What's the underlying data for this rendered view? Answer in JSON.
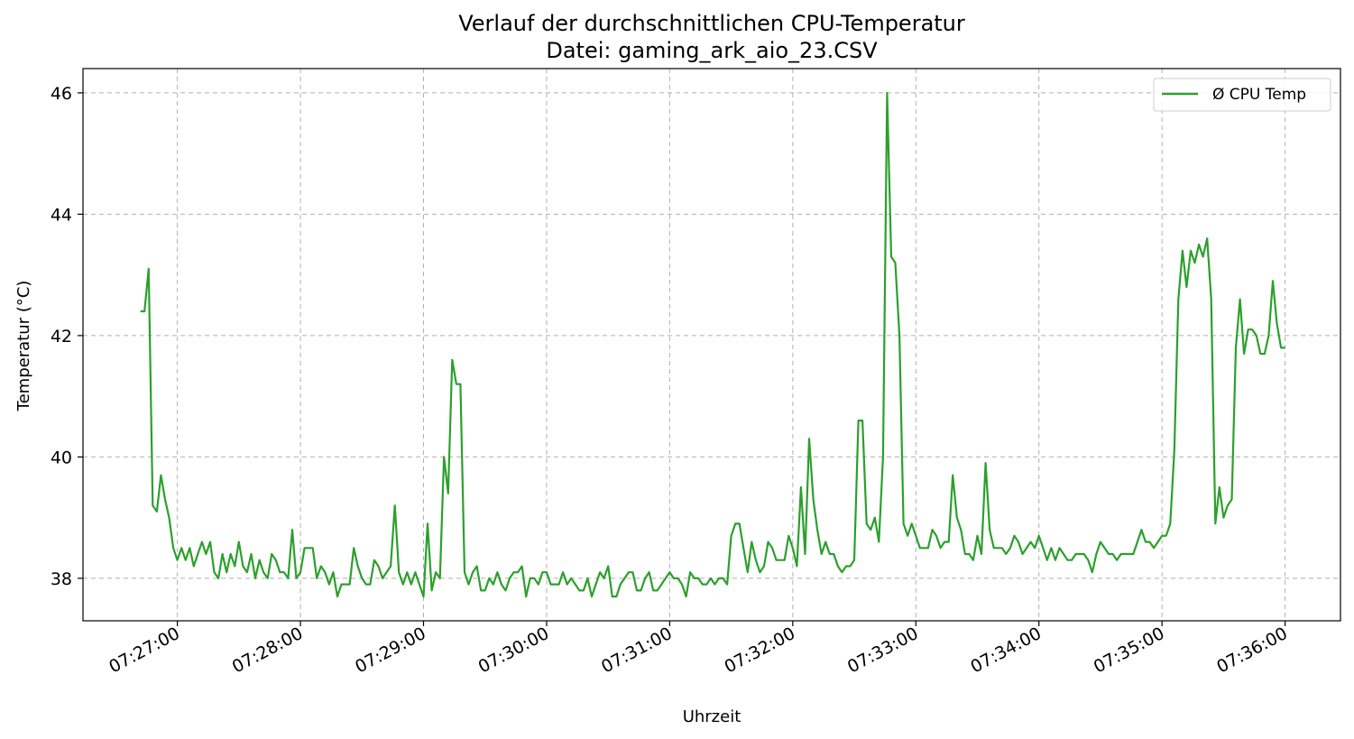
{
  "chart_data": {
    "type": "line",
    "title": "Verlauf der durchschnittlichen CPU-Temperatur",
    "subtitle": "Datei: gaming_ark_aio_23.CSV",
    "xlabel": "Uhrzeit",
    "ylabel": "Temperatur (°C)",
    "x_ticks": [
      "07:27:00",
      "07:28:00",
      "07:29:00",
      "07:30:00",
      "07:31:00",
      "07:32:00",
      "07:33:00",
      "07:34:00",
      "07:35:00",
      "07:36:00"
    ],
    "y_ticks": [
      38,
      40,
      42,
      44,
      46
    ],
    "xlim": [
      "07:26:14",
      "07:36:27"
    ],
    "ylim": [
      37.3,
      46.4
    ],
    "grid": true,
    "legend_position": "top-right",
    "series": [
      {
        "name": "Ø CPU Temp",
        "color": "#2ca02c",
        "x": [
          "07:26:42",
          "07:26:44",
          "07:26:46",
          "07:26:48",
          "07:26:50",
          "07:26:52",
          "07:26:54",
          "07:26:56",
          "07:26:58",
          "07:27:00",
          "07:27:02",
          "07:27:04",
          "07:27:06",
          "07:27:08",
          "07:27:10",
          "07:27:12",
          "07:27:14",
          "07:27:16",
          "07:27:18",
          "07:27:20",
          "07:27:22",
          "07:27:24",
          "07:27:26",
          "07:27:28",
          "07:27:30",
          "07:27:32",
          "07:27:34",
          "07:27:36",
          "07:27:38",
          "07:27:40",
          "07:27:42",
          "07:27:44",
          "07:27:46",
          "07:27:48",
          "07:27:50",
          "07:27:52",
          "07:27:54",
          "07:27:56",
          "07:27:58",
          "07:28:00",
          "07:28:02",
          "07:28:04",
          "07:28:06",
          "07:28:08",
          "07:28:10",
          "07:28:12",
          "07:28:14",
          "07:28:16",
          "07:28:18",
          "07:28:20",
          "07:28:22",
          "07:28:24",
          "07:28:26",
          "07:28:28",
          "07:28:30",
          "07:28:32",
          "07:28:34",
          "07:28:36",
          "07:28:38",
          "07:28:40",
          "07:28:42",
          "07:28:44",
          "07:28:46",
          "07:28:48",
          "07:28:50",
          "07:28:52",
          "07:28:54",
          "07:28:56",
          "07:28:58",
          "07:29:00",
          "07:29:02",
          "07:29:04",
          "07:29:06",
          "07:29:08",
          "07:29:10",
          "07:29:12",
          "07:29:14",
          "07:29:16",
          "07:29:18",
          "07:29:20",
          "07:29:22",
          "07:29:24",
          "07:29:26",
          "07:29:28",
          "07:29:30",
          "07:29:32",
          "07:29:34",
          "07:29:36",
          "07:29:38",
          "07:29:40",
          "07:29:42",
          "07:29:44",
          "07:29:46",
          "07:29:48",
          "07:29:50",
          "07:29:52",
          "07:29:54",
          "07:29:56",
          "07:29:58",
          "07:30:00",
          "07:30:02",
          "07:30:04",
          "07:30:06",
          "07:30:08",
          "07:30:10",
          "07:30:12",
          "07:30:14",
          "07:30:16",
          "07:30:18",
          "07:30:20",
          "07:30:22",
          "07:30:24",
          "07:30:26",
          "07:30:28",
          "07:30:30",
          "07:30:32",
          "07:30:34",
          "07:30:36",
          "07:30:38",
          "07:30:40",
          "07:30:42",
          "07:30:44",
          "07:30:46",
          "07:30:48",
          "07:30:50",
          "07:30:52",
          "07:30:54",
          "07:30:56",
          "07:30:58",
          "07:31:00",
          "07:31:02",
          "07:31:04",
          "07:31:06",
          "07:31:08",
          "07:31:10",
          "07:31:12",
          "07:31:14",
          "07:31:16",
          "07:31:18",
          "07:31:20",
          "07:31:22",
          "07:31:24",
          "07:31:26",
          "07:31:28",
          "07:31:30",
          "07:31:32",
          "07:31:34",
          "07:31:36",
          "07:31:38",
          "07:31:40",
          "07:31:42",
          "07:31:44",
          "07:31:46",
          "07:31:48",
          "07:31:50",
          "07:31:52",
          "07:31:54",
          "07:31:56",
          "07:31:58",
          "07:32:00",
          "07:32:02",
          "07:32:04",
          "07:32:06",
          "07:32:08",
          "07:32:10",
          "07:32:12",
          "07:32:14",
          "07:32:16",
          "07:32:18",
          "07:32:20",
          "07:32:22",
          "07:32:24",
          "07:32:26",
          "07:32:28",
          "07:32:30",
          "07:32:32",
          "07:32:34",
          "07:32:36",
          "07:32:38",
          "07:32:40",
          "07:32:42",
          "07:32:44",
          "07:32:46",
          "07:32:48",
          "07:32:50",
          "07:32:52",
          "07:32:54",
          "07:32:56",
          "07:32:58",
          "07:33:00",
          "07:33:02",
          "07:33:04",
          "07:33:06",
          "07:33:08",
          "07:33:10",
          "07:33:12",
          "07:33:14",
          "07:33:16",
          "07:33:18",
          "07:33:20",
          "07:33:22",
          "07:33:24",
          "07:33:26",
          "07:33:28",
          "07:33:30",
          "07:33:32",
          "07:33:34",
          "07:33:36",
          "07:33:38",
          "07:33:40",
          "07:33:42",
          "07:33:44",
          "07:33:46",
          "07:33:48",
          "07:33:50",
          "07:33:52",
          "07:33:54",
          "07:33:56",
          "07:33:58",
          "07:34:00",
          "07:34:02",
          "07:34:04",
          "07:34:06",
          "07:34:08",
          "07:34:10",
          "07:34:12",
          "07:34:14",
          "07:34:16",
          "07:34:18",
          "07:34:20",
          "07:34:22",
          "07:34:24",
          "07:34:26",
          "07:34:28",
          "07:34:30",
          "07:34:32",
          "07:34:34",
          "07:34:36",
          "07:34:38",
          "07:34:40",
          "07:34:42",
          "07:34:44",
          "07:34:46",
          "07:34:48",
          "07:34:50",
          "07:34:52",
          "07:34:54",
          "07:34:56",
          "07:34:58",
          "07:35:00",
          "07:35:02",
          "07:35:04",
          "07:35:06",
          "07:35:08",
          "07:35:10",
          "07:35:12",
          "07:35:14",
          "07:35:16",
          "07:35:18",
          "07:35:20",
          "07:35:22",
          "07:35:24",
          "07:35:26",
          "07:35:28",
          "07:35:30",
          "07:35:32",
          "07:35:34",
          "07:35:36",
          "07:35:38",
          "07:35:40",
          "07:35:42",
          "07:35:44",
          "07:35:46",
          "07:35:48",
          "07:35:50",
          "07:35:52",
          "07:35:54",
          "07:35:56",
          "07:35:58",
          "07:36:00"
        ],
        "values": [
          42.4,
          42.4,
          43.1,
          39.2,
          39.1,
          39.7,
          39.3,
          39.0,
          38.5,
          38.3,
          38.5,
          38.3,
          38.5,
          38.2,
          38.4,
          38.6,
          38.4,
          38.6,
          38.1,
          38.0,
          38.4,
          38.1,
          38.4,
          38.2,
          38.6,
          38.2,
          38.1,
          38.4,
          38.0,
          38.3,
          38.1,
          38.0,
          38.4,
          38.3,
          38.1,
          38.1,
          38.0,
          38.8,
          38.0,
          38.1,
          38.5,
          38.5,
          38.5,
          38.0,
          38.2,
          38.1,
          37.9,
          38.1,
          37.7,
          37.9,
          37.9,
          37.9,
          38.5,
          38.2,
          38.0,
          37.9,
          37.9,
          38.3,
          38.2,
          38.0,
          38.1,
          38.2,
          39.2,
          38.1,
          37.9,
          38.1,
          37.9,
          38.1,
          37.9,
          37.7,
          38.9,
          37.8,
          38.1,
          38.0,
          40.0,
          39.4,
          41.6,
          41.2,
          41.2,
          38.1,
          37.9,
          38.1,
          38.2,
          37.8,
          37.8,
          38.0,
          37.9,
          38.1,
          37.9,
          37.8,
          38.0,
          38.1,
          38.1,
          38.2,
          37.7,
          38.0,
          38.0,
          37.9,
          38.1,
          38.1,
          37.9,
          37.9,
          37.9,
          38.1,
          37.9,
          38.0,
          37.9,
          37.8,
          37.8,
          38.0,
          37.7,
          37.9,
          38.1,
          38.0,
          38.2,
          37.7,
          37.7,
          37.9,
          38.0,
          38.1,
          38.1,
          37.8,
          37.8,
          38.0,
          38.1,
          37.8,
          37.8,
          37.9,
          38.0,
          38.1,
          38.0,
          38.0,
          37.9,
          37.7,
          38.1,
          38.0,
          38.0,
          37.9,
          37.9,
          38.0,
          37.9,
          38.0,
          38.0,
          37.9,
          38.7,
          38.9,
          38.9,
          38.5,
          38.1,
          38.6,
          38.3,
          38.1,
          38.2,
          38.6,
          38.5,
          38.3,
          38.3,
          38.3,
          38.7,
          38.5,
          38.2,
          39.5,
          38.4,
          40.3,
          39.3,
          38.8,
          38.4,
          38.6,
          38.4,
          38.4,
          38.2,
          38.1,
          38.2,
          38.2,
          38.3,
          40.6,
          40.6,
          38.9,
          38.8,
          39.0,
          38.6,
          40.0,
          46.0,
          43.3,
          43.2,
          42.0,
          38.9,
          38.7,
          38.9,
          38.7,
          38.5,
          38.5,
          38.5,
          38.8,
          38.7,
          38.5,
          38.6,
          38.6,
          39.7,
          39.0,
          38.8,
          38.4,
          38.4,
          38.3,
          38.7,
          38.4,
          39.9,
          38.8,
          38.5,
          38.5,
          38.5,
          38.4,
          38.5,
          38.7,
          38.6,
          38.4,
          38.5,
          38.6,
          38.5,
          38.7,
          38.5,
          38.3,
          38.5,
          38.3,
          38.5,
          38.4,
          38.3,
          38.3,
          38.4,
          38.4,
          38.4,
          38.3,
          38.1,
          38.4,
          38.6,
          38.5,
          38.4,
          38.4,
          38.3,
          38.4,
          38.4,
          38.4,
          38.4,
          38.6,
          38.8,
          38.6,
          38.6,
          38.5,
          38.6,
          38.7,
          38.7,
          38.9,
          40.1,
          42.6,
          43.4,
          42.8,
          43.4,
          43.2,
          43.5,
          43.3,
          43.6,
          42.6,
          38.9,
          39.5,
          39.0,
          39.2,
          39.3,
          41.8,
          42.6,
          41.7,
          42.1,
          42.1,
          42.0,
          41.7,
          41.7,
          42.0,
          42.9,
          42.2,
          41.8,
          41.8
        ]
      }
    ]
  }
}
